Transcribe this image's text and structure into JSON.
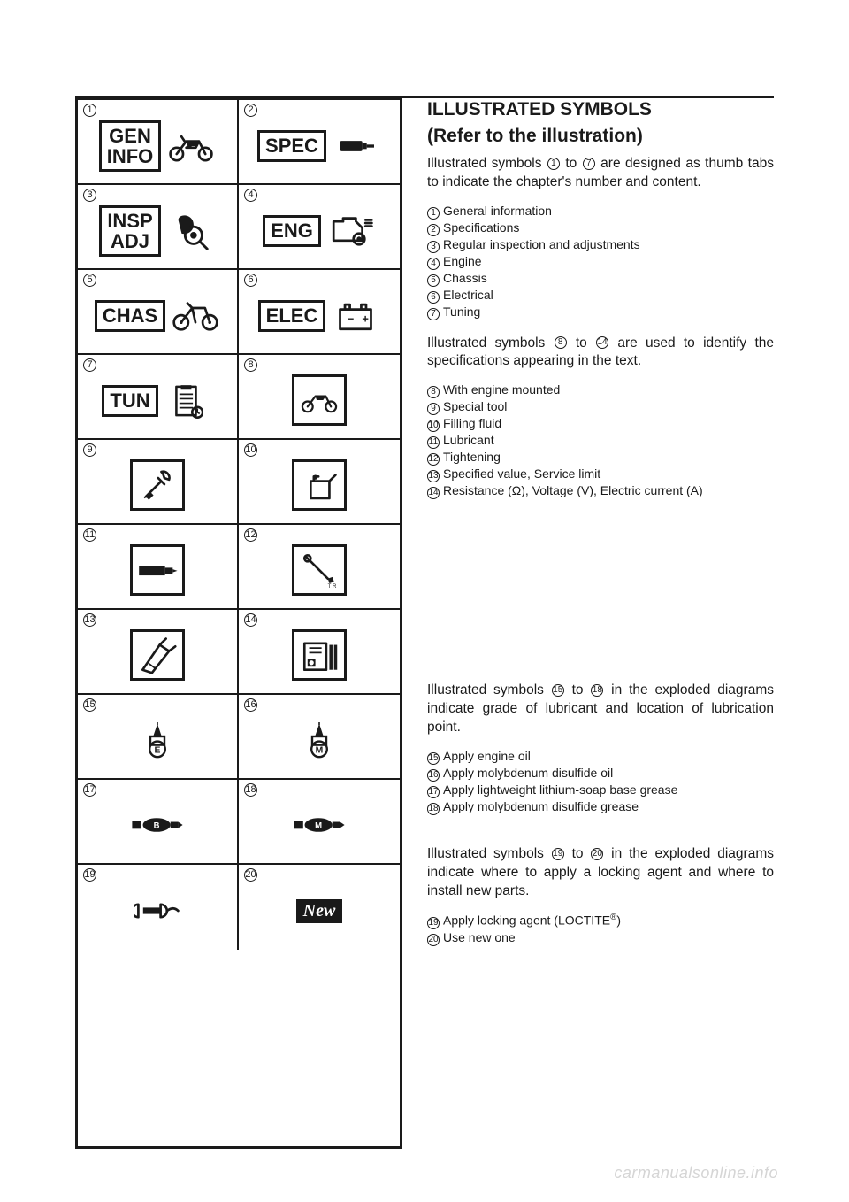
{
  "grid": {
    "cells": [
      {
        "num": "1",
        "label": "GEN\nINFO",
        "icon": "motorcycle"
      },
      {
        "num": "2",
        "label": "SPEC",
        "icon": "plug"
      },
      {
        "num": "3",
        "label": "INSP\nADJ",
        "icon": "magnify"
      },
      {
        "num": "4",
        "label": "ENG",
        "icon": "engine"
      },
      {
        "num": "5",
        "label": "CHAS",
        "icon": "bike"
      },
      {
        "num": "6",
        "label": "ELEC",
        "icon": "battery"
      },
      {
        "num": "7",
        "label": "TUN",
        "icon": "clipboard"
      },
      {
        "num": "8",
        "icon": "motorcycle-sm",
        "boxed": true
      },
      {
        "num": "9",
        "icon": "tool",
        "boxed": true
      },
      {
        "num": "10",
        "icon": "fill",
        "boxed": true
      },
      {
        "num": "11",
        "icon": "grease",
        "boxed": true
      },
      {
        "num": "12",
        "icon": "torque",
        "boxed": true
      },
      {
        "num": "13",
        "icon": "gauge",
        "boxed": true
      },
      {
        "num": "14",
        "icon": "meter",
        "boxed": true
      },
      {
        "num": "15",
        "icon": "oil-e"
      },
      {
        "num": "16",
        "icon": "oil-m"
      },
      {
        "num": "17",
        "icon": "grease-b"
      },
      {
        "num": "18",
        "icon": "grease-m"
      },
      {
        "num": "19",
        "icon": "loctite"
      },
      {
        "num": "20",
        "icon": "new"
      }
    ]
  },
  "heading": "ILLUSTRATED SYMBOLS",
  "subheading": "(Refer to the illustration)",
  "sections": [
    {
      "para_pre": "Illustrated symbols ",
      "range_a": "1",
      "range_to": " to ",
      "range_b": "7",
      "para_post": " are designed as thumb tabs to indicate the chapter's number and content.",
      "items": [
        {
          "n": "1",
          "t": "General information"
        },
        {
          "n": "2",
          "t": "Specifications"
        },
        {
          "n": "3",
          "t": "Regular inspection and adjustments"
        },
        {
          "n": "4",
          "t": "Engine"
        },
        {
          "n": "5",
          "t": "Chassis"
        },
        {
          "n": "6",
          "t": "Electrical"
        },
        {
          "n": "7",
          "t": "Tuning"
        }
      ]
    },
    {
      "para_pre": "Illustrated symbols ",
      "range_a": "8",
      "range_to": " to ",
      "range_b": "14",
      "para_post": " are used to identify the specifications appearing in the text.",
      "items": [
        {
          "n": "8",
          "t": "With engine mounted"
        },
        {
          "n": "9",
          "t": "Special tool"
        },
        {
          "n": "10",
          "t": "Filling fluid"
        },
        {
          "n": "11",
          "t": "Lubricant"
        },
        {
          "n": "12",
          "t": "Tightening"
        },
        {
          "n": "13",
          "t": "Specified value, Service limit"
        },
        {
          "n": "14",
          "t": "Resistance (Ω), Voltage (V), Electric current (A)"
        }
      ]
    },
    {
      "para_pre": "Illustrated symbols ",
      "range_a": "15",
      "range_to": " to ",
      "range_b": "18",
      "para_post": " in the exploded diagrams indicate grade of lubricant and location of lubrication point.",
      "items": [
        {
          "n": "15",
          "t": "Apply engine oil"
        },
        {
          "n": "16",
          "t": "Apply molybdenum disulfide oil"
        },
        {
          "n": "17",
          "t": "Apply lightweight lithium-soap base grease"
        },
        {
          "n": "18",
          "t": "Apply molybdenum disulfide grease"
        }
      ]
    },
    {
      "para_pre": "Illustrated symbols ",
      "range_a": "19",
      "range_to": " to ",
      "range_b": "20",
      "para_post": " in the exploded diagrams indicate where to apply a locking agent and where to install new parts.",
      "items": [
        {
          "n": "19",
          "t": "Apply locking agent (LOCTITE®)",
          "sup": true
        },
        {
          "n": "20",
          "t": "Use new one"
        }
      ]
    }
  ],
  "new_label": "New",
  "watermark": "carmanualsonline.info",
  "colors": {
    "fg": "#1a1a1a",
    "bg": "#ffffff",
    "wm": "#d5d5d5"
  }
}
